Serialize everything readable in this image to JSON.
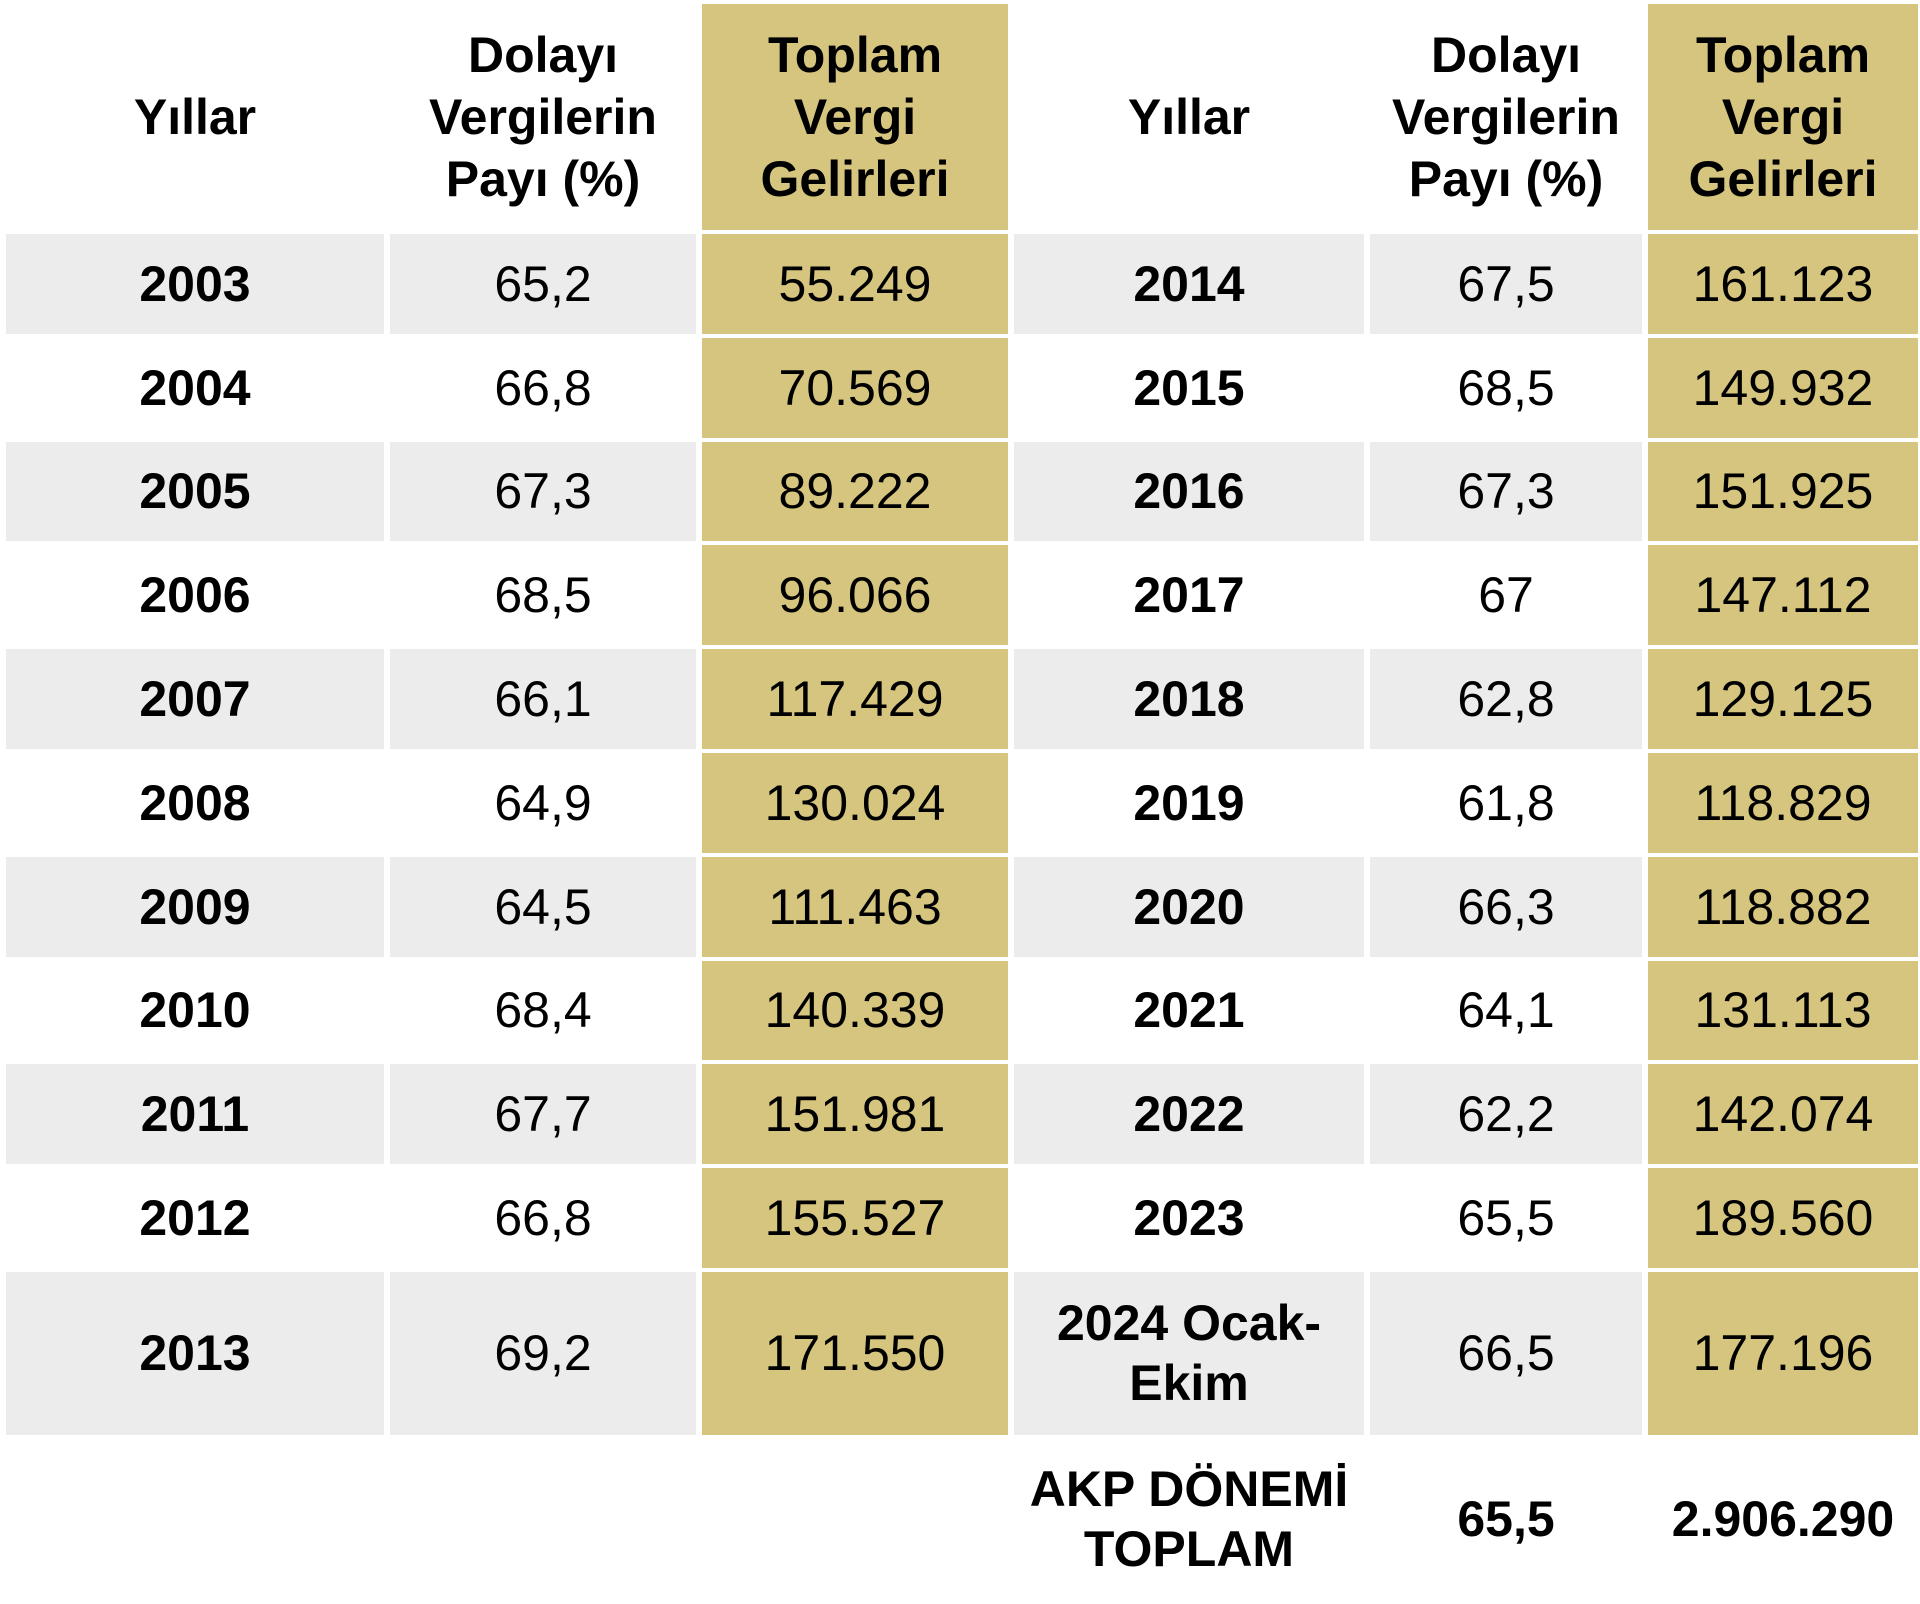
{
  "chart_data": {
    "type": "table",
    "columns": [
      "Yıllar",
      "Dolayı Vergilerin Payı (%)",
      "Toplam Vergi Gelirleri",
      "Yıllar",
      "Dolayı Vergilerin Payı (%)",
      "Toplam Vergi Gelirleri"
    ],
    "header": {
      "year": "Yıllar",
      "share": "Dolayı\nVergilerin\nPayı (%)",
      "total": "Toplam\nVergi\nGelirleri"
    },
    "rows": [
      {
        "y1": "2003",
        "s1": "65,2",
        "t1": "55.249",
        "y2": "2014",
        "s2": "67,5",
        "t2": "161.123"
      },
      {
        "y1": "2004",
        "s1": "66,8",
        "t1": "70.569",
        "y2": "2015",
        "s2": "68,5",
        "t2": "149.932"
      },
      {
        "y1": "2005",
        "s1": "67,3",
        "t1": "89.222",
        "y2": "2016",
        "s2": "67,3",
        "t2": "151.925"
      },
      {
        "y1": "2006",
        "s1": "68,5",
        "t1": "96.066",
        "y2": "2017",
        "s2": "67",
        "t2": "147.112"
      },
      {
        "y1": "2007",
        "s1": "66,1",
        "t1": "117.429",
        "y2": "2018",
        "s2": "62,8",
        "t2": "129.125"
      },
      {
        "y1": "2008",
        "s1": "64,9",
        "t1": "130.024",
        "y2": "2019",
        "s2": "61,8",
        "t2": "118.829"
      },
      {
        "y1": "2009",
        "s1": "64,5",
        "t1": "111.463",
        "y2": "2020",
        "s2": "66,3",
        "t2": "118.882"
      },
      {
        "y1": "2010",
        "s1": "68,4",
        "t1": "140.339",
        "y2": "2021",
        "s2": "64,1",
        "t2": "131.113"
      },
      {
        "y1": "2011",
        "s1": "67,7",
        "t1": "151.981",
        "y2": "2022",
        "s2": "62,2",
        "t2": "142.074"
      },
      {
        "y1": "2012",
        "s1": "66,8",
        "t1": "155.527",
        "y2": "2023",
        "s2": "65,5",
        "t2": "189.560"
      },
      {
        "y1": "2013",
        "s1": "69,2",
        "t1": "171.550",
        "y2": "2024 Ocak-\nEkim",
        "s2": "66,5",
        "t2": "177.196"
      }
    ],
    "total": {
      "label": "AKP DÖNEMİ\nTOPLAM",
      "share": "65,5",
      "total": "2.906.290"
    }
  },
  "colors": {
    "highlight": "#d6c57e",
    "stripe": "#ececec",
    "background": "#ffffff"
  }
}
